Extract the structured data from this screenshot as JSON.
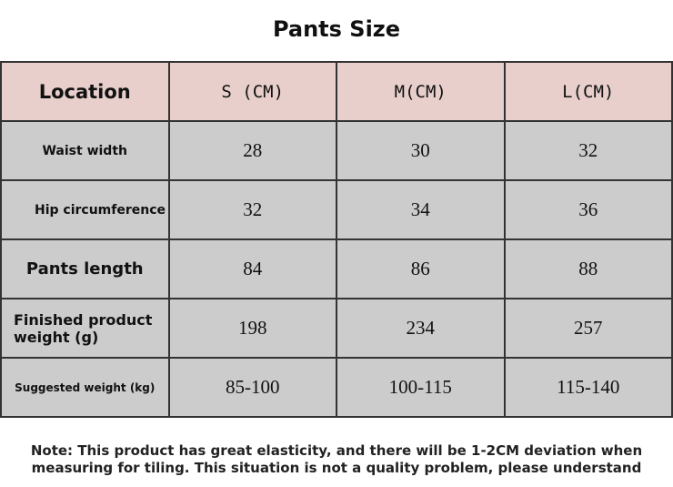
{
  "title": "Pants Size",
  "table": {
    "header": [
      "Location",
      "S (CM)",
      "M(CM)",
      "L(CM)"
    ],
    "rows": [
      [
        "Waist width",
        "28",
        "30",
        "32"
      ],
      [
        "Hip circumference",
        "32",
        "34",
        "36"
      ],
      [
        "Pants length",
        "84",
        "86",
        "88"
      ],
      [
        "Finished product weight (g)",
        "198",
        "234",
        "257"
      ],
      [
        "Suggested weight (kg)",
        "85-100",
        "100-115",
        "115-140"
      ]
    ]
  },
  "note": "Note: This product has great elasticity, and there will be 1-2CM deviation when measuring for tiling. This situation is not a quality problem, please understand"
}
